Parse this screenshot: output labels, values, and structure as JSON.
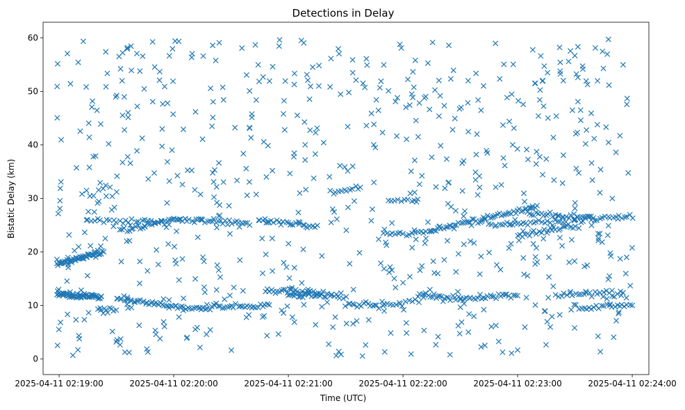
{
  "chart_data": {
    "type": "scatter",
    "title": "Detections in Delay",
    "xlabel": "Time (UTC)",
    "ylabel": "Bistatic Delay (km)",
    "marker": "x",
    "color": "#1f77b4",
    "grid": false,
    "x_unit": "seconds after 2025-04-11 02:19:00 UTC",
    "xlim": [
      -8.4,
      308.7
    ],
    "ylim": [
      -2.9,
      62.9
    ],
    "x_ticks": [
      {
        "value": 0,
        "label": "2025-04-11 02:19:00"
      },
      {
        "value": 60,
        "label": "2025-04-11 02:20:00"
      },
      {
        "value": 120,
        "label": "2025-04-11 02:21:00"
      },
      {
        "value": 180,
        "label": "2025-04-11 02:22:00"
      },
      {
        "value": 240,
        "label": "2025-04-11 02:23:00"
      },
      {
        "value": 300,
        "label": "2025-04-11 02:24:00"
      }
    ],
    "y_ticks": [
      0,
      10,
      20,
      30,
      40,
      50,
      60
    ],
    "series": [
      {
        "name": "Detections",
        "tracks": [
          {
            "label": "track ~12 km",
            "x_start": -1,
            "x_end": 22,
            "y_start": 12.0,
            "y_end": 11.6,
            "count": 60
          },
          {
            "label": "track ~18-20 km",
            "x_start": -1,
            "x_end": 23,
            "y_start": 17.8,
            "y_end": 20.0,
            "count": 55
          },
          {
            "label": "track ~26 km",
            "x_start": 15,
            "x_end": 55,
            "y_start": 26.0,
            "y_end": 25.6,
            "count": 25
          },
          {
            "label": "track ~25 km",
            "x_start": 32,
            "x_end": 60,
            "y_start": 24.0,
            "y_end": 26.0,
            "count": 25
          },
          {
            "label": "track ~11 km",
            "x_start": 30,
            "x_end": 65,
            "y_start": 11.5,
            "y_end": 9.5,
            "count": 40
          },
          {
            "label": "track ~26 km (2)",
            "x_start": 60,
            "x_end": 100,
            "y_start": 26.0,
            "y_end": 25.5,
            "count": 35
          },
          {
            "label": "track ~10 km",
            "x_start": 65,
            "x_end": 110,
            "y_start": 9.5,
            "y_end": 10.0,
            "count": 40
          },
          {
            "label": "track ~25.5 km",
            "x_start": 105,
            "x_end": 135,
            "y_start": 25.8,
            "y_end": 25.0,
            "count": 25
          },
          {
            "label": "track ~12.5 km",
            "x_start": 108,
            "x_end": 138,
            "y_start": 12.8,
            "y_end": 12.3,
            "count": 30
          },
          {
            "label": "track ~12 km (2)",
            "x_start": 120,
            "x_end": 150,
            "y_start": 12.0,
            "y_end": 11.8,
            "count": 30
          },
          {
            "label": "track ~31 km",
            "x_start": 142,
            "x_end": 158,
            "y_start": 31.0,
            "y_end": 32.0,
            "count": 12
          },
          {
            "label": "track ~10 km (2)",
            "x_start": 150,
            "x_end": 170,
            "y_start": 9.8,
            "y_end": 10.2,
            "count": 18
          },
          {
            "label": "track ~23.5 km",
            "x_start": 170,
            "x_end": 195,
            "y_start": 23.2,
            "y_end": 23.8,
            "count": 18
          },
          {
            "label": "track ~29.5 km",
            "x_start": 172,
            "x_end": 188,
            "y_start": 29.4,
            "y_end": 29.8,
            "count": 10
          },
          {
            "label": "track ~10.5 km",
            "x_start": 170,
            "x_end": 188,
            "y_start": 10.2,
            "y_end": 10.8,
            "count": 12
          },
          {
            "label": "track ~12 km (3)",
            "x_start": 188,
            "x_end": 210,
            "y_start": 12.0,
            "y_end": 11.2,
            "count": 22
          },
          {
            "label": "track ~24-28 km",
            "x_start": 195,
            "x_end": 250,
            "y_start": 24.0,
            "y_end": 28.5,
            "count": 55
          },
          {
            "label": "track ~11.5 km",
            "x_start": 210,
            "x_end": 240,
            "y_start": 11.3,
            "y_end": 11.9,
            "count": 28
          },
          {
            "label": "track ~25.5 km (2)",
            "x_start": 225,
            "x_end": 265,
            "y_start": 25.0,
            "y_end": 25.8,
            "count": 30
          },
          {
            "label": "track ~27 km",
            "x_start": 245,
            "x_end": 280,
            "y_start": 27.2,
            "y_end": 26.5,
            "count": 30
          },
          {
            "label": "track ~24 km",
            "x_start": 240,
            "x_end": 270,
            "y_start": 23.0,
            "y_end": 24.8,
            "count": 25
          },
          {
            "label": "track ~12 km (4)",
            "x_start": 260,
            "x_end": 295,
            "y_start": 12.0,
            "y_end": 12.3,
            "count": 25
          },
          {
            "label": "track ~10 km (3)",
            "x_start": 268,
            "x_end": 300,
            "y_start": 9.5,
            "y_end": 10.2,
            "count": 25
          },
          {
            "label": "track ~26 km (3)",
            "x_start": 270,
            "x_end": 300,
            "y_start": 25.8,
            "y_end": 26.8,
            "count": 22
          },
          {
            "label": "track ~9 km",
            "x_start": 20,
            "x_end": 30,
            "y_start": 9.0,
            "y_end": 9.3,
            "count": 10
          }
        ],
        "clutter": {
          "x_range": [
            -2,
            300
          ],
          "y_range": [
            0.5,
            60
          ],
          "count": 700
        }
      }
    ]
  }
}
